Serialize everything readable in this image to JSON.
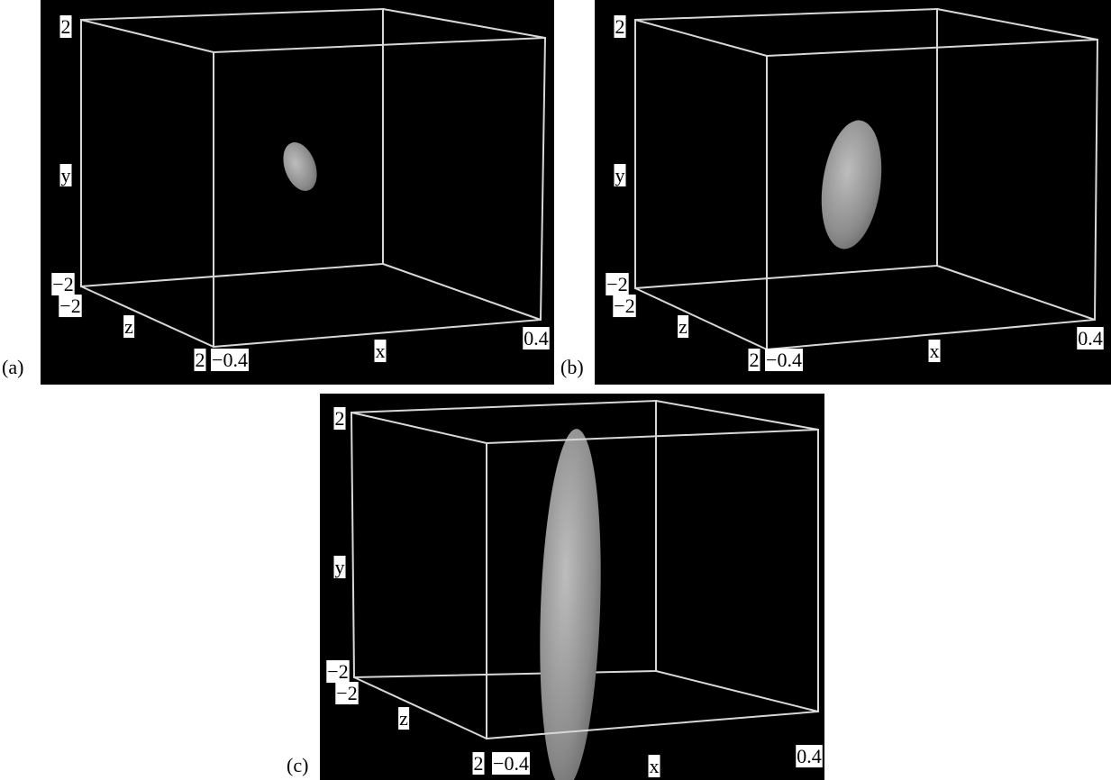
{
  "panels": [
    {
      "label": "(a)",
      "axis_labels": {
        "x": "x",
        "y": "y",
        "z": "z"
      },
      "ticks": {
        "y_max": "2",
        "y_min": "−2",
        "z_min": "−2",
        "z_max": "2",
        "x_min": "−0.4",
        "x_max": "0.4"
      }
    },
    {
      "label": "(b)",
      "axis_labels": {
        "x": "x",
        "y": "y",
        "z": "z"
      },
      "ticks": {
        "y_max": "2",
        "y_min": "−2",
        "z_min": "−2",
        "z_max": "2",
        "x_min": "−0.4",
        "x_max": "0.4"
      }
    },
    {
      "label": "(c)",
      "axis_labels": {
        "x": "x",
        "y": "y",
        "z": "z"
      },
      "ticks": {
        "y_max": "2",
        "y_min": "−2",
        "z_min": "−2",
        "z_max": "2",
        "x_min": "−0.4",
        "x_max": "0.4"
      }
    }
  ]
}
